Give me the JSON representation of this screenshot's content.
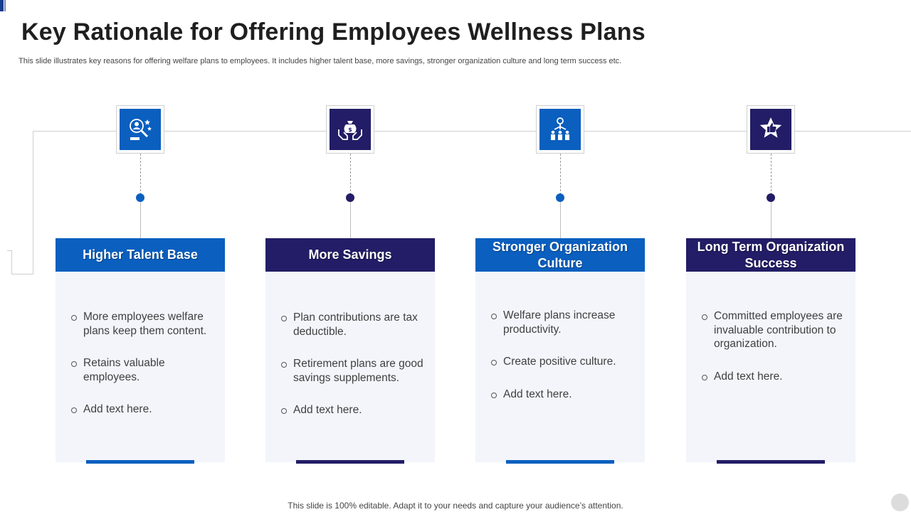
{
  "title": "Key Rationale for Offering Employees Wellness Plans",
  "subtitle": "This slide illustrates key reasons for offering welfare plans to employees. It includes higher talent base, more savings, stronger organization culture and long term success etc.",
  "footer": "This slide is 100% editable. Adapt it to your needs and capture your audience’s attention.",
  "colors": {
    "blue": "#0a5fbf",
    "navy": "#221d66",
    "card_bg": "#f3f5fb"
  },
  "columns": [
    {
      "heading": "Higher Talent Base",
      "icon": "talent-search-icon",
      "color": "#0a5fbf",
      "bullets": [
        "More employees welfare plans keep them content.",
        "Retains valuable employees.",
        "Add text here."
      ]
    },
    {
      "heading": "More Savings",
      "icon": "money-bag-hands-icon",
      "color": "#221d66",
      "bullets": [
        "Plan contributions are tax deductible.",
        "Retirement plans are good savings supplements.",
        "Add text here."
      ]
    },
    {
      "heading": "Stronger Organization Culture",
      "icon": "team-growth-icon",
      "color": "#0a5fbf",
      "bullets": [
        "Welfare plans increase productivity.",
        "Create positive culture.",
        "Add text here."
      ]
    },
    {
      "heading": "Long Term Organization Success",
      "icon": "star-thumbs-up-icon",
      "color": "#221d66",
      "bullets": [
        "Committed employees are invaluable contribution to organization.",
        "Add text here."
      ]
    }
  ]
}
